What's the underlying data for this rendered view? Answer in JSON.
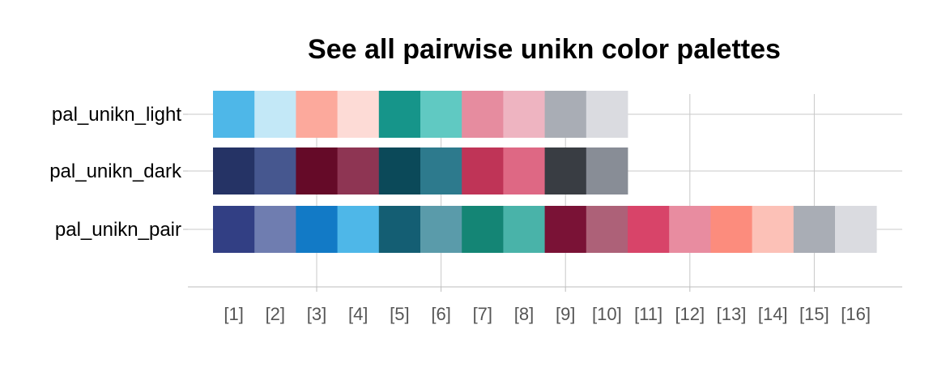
{
  "chart_data": {
    "type": "heatmap",
    "title": "See all pairwise unikn color palettes",
    "xlabel": "",
    "ylabel": "",
    "x_tick_labels": [
      "[1]",
      "[2]",
      "[3]",
      "[4]",
      "[5]",
      "[6]",
      "[7]",
      "[8]",
      "[9]",
      "[10]",
      "[11]",
      "[12]",
      "[13]",
      "[14]",
      "[15]",
      "[16]"
    ],
    "xlim": [
      0.5,
      17.25
    ],
    "gridlines_x": [
      3,
      6,
      9,
      12,
      15
    ],
    "grid": true,
    "palettes": [
      {
        "name": "pal_unikn_light",
        "colors": [
          "#4EB7E8",
          "#C3E8F7",
          "#FCA99C",
          "#FDDBD6",
          "#16958A",
          "#60C9C2",
          "#E68C9F",
          "#EEB4C1",
          "#A9ADB5",
          "#DADBE0"
        ]
      },
      {
        "name": "pal_unikn_dark",
        "colors": [
          "#253365",
          "#46578F",
          "#650A28",
          "#8E3553",
          "#0B4959",
          "#2D7A8D",
          "#BF3457",
          "#DE6884",
          "#393D43",
          "#888D96"
        ]
      },
      {
        "name": "pal_unikn_pair",
        "colors": [
          "#323F84",
          "#6F7DB0",
          "#127AC6",
          "#4EB7E8",
          "#145E73",
          "#5A9BAA",
          "#148575",
          "#49B3A9",
          "#7A1236",
          "#AD6178",
          "#D84469",
          "#E88CA0",
          "#FC8C7D",
          "#FCC1B7",
          "#A9ADB5",
          "#DADBE0"
        ]
      }
    ]
  }
}
